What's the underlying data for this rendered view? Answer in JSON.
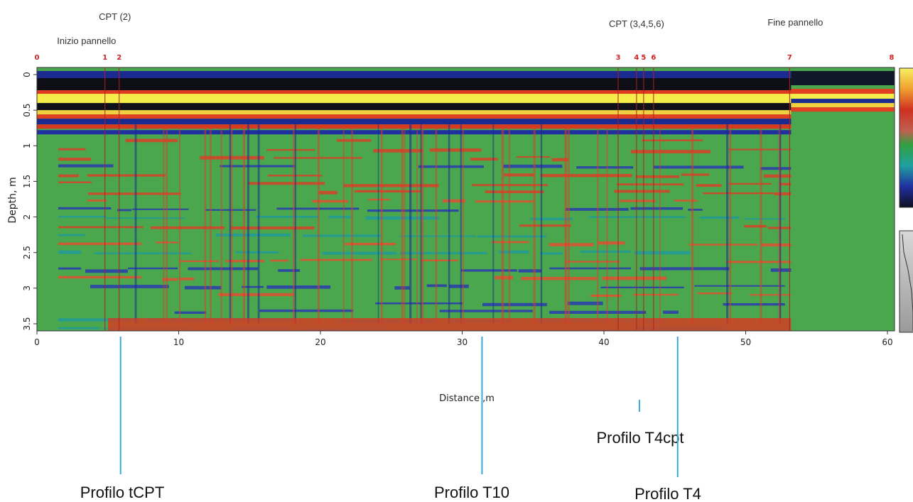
{
  "chart_data": {
    "type": "heatmap",
    "xlabel": "Distance ,m",
    "ylabel": "Depth, m",
    "xlim": [
      0,
      60.5
    ],
    "ylim": [
      3.6,
      -0.1
    ],
    "x_ticks": [
      0,
      10,
      20,
      30,
      40,
      50,
      60
    ],
    "y_ticks": [
      0,
      0.5,
      1,
      1.5,
      2,
      2.5,
      3,
      3.5
    ],
    "y_tick_labels": [
      "0",
      "0.5",
      "1",
      "1.5",
      "2",
      "2.5",
      "3",
      "3.5"
    ],
    "markers": [
      {
        "label": "0",
        "x": 0
      },
      {
        "label": "1",
        "x": 4.8
      },
      {
        "label": "2",
        "x": 5.8
      },
      {
        "label": "3",
        "x": 41.0
      },
      {
        "label": "4",
        "x": 42.3
      },
      {
        "label": "5",
        "x": 42.8
      },
      {
        "label": "6",
        "x": 43.5
      },
      {
        "label": "7",
        "x": 53.1
      },
      {
        "label": "8",
        "x": 60.3
      }
    ],
    "top_annotations": [
      {
        "text": "CPT (2)",
        "x": 5.5
      },
      {
        "text": "Inizio pannello",
        "x": 3.5
      },
      {
        "text": "CPT (3,4,5,6)",
        "x": 42.3
      },
      {
        "text": "Fine pannello",
        "x": 53.5
      }
    ],
    "profiles": [
      {
        "label": "Profilo tCPT",
        "x": 5.9
      },
      {
        "label": "Profilo T10",
        "x": 31.4
      },
      {
        "label": "Profilo T4cpt",
        "x": 42.5
      },
      {
        "label": "Profilo T4",
        "x": 45.2
      }
    ],
    "colorscale": [
      "#f5f050",
      "#e04020",
      "#30a040",
      "#1a3aa0",
      "#101018"
    ],
    "grid": false,
    "legend": "colorbar-right"
  }
}
